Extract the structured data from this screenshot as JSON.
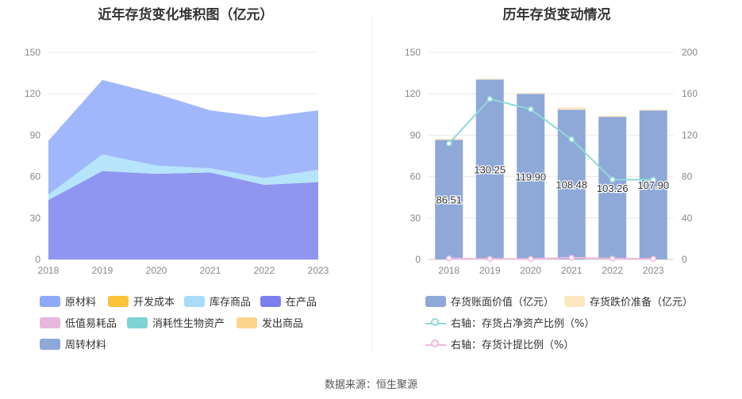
{
  "left": {
    "title": "近年存货变化堆积图（亿元）",
    "legend": [
      {
        "label": "原材料",
        "color": "#8fa8f8"
      },
      {
        "label": "开发成本",
        "color": "#fbc33a"
      },
      {
        "label": "库存商品",
        "color": "#a8dcf8"
      },
      {
        "label": "在产品",
        "color": "#7b7ff0"
      },
      {
        "label": "低值易耗品",
        "color": "#e6b6dc"
      },
      {
        "label": "消耗性生物资产",
        "color": "#7fd3d3"
      },
      {
        "label": "发出商品",
        "color": "#fcd48e"
      },
      {
        "label": "周转材料",
        "color": "#8ea8d8"
      }
    ]
  },
  "right": {
    "title": "历年存货变动情况",
    "legend": [
      {
        "label": "存货账面价值（亿元）",
        "color": "#8ea8d8",
        "kind": "bar"
      },
      {
        "label": "存货跌价准备（亿元）",
        "color": "#fce6c0",
        "kind": "bar"
      },
      {
        "label": "右轴：存货占净资产比例（%）",
        "color": "#8fd9d9",
        "kind": "line"
      },
      {
        "label": "右轴：存货计提比例（%）",
        "color": "#f0b8e0",
        "kind": "line"
      }
    ]
  },
  "source": "数据来源：恒生聚源",
  "chart_data": [
    {
      "type": "area",
      "title": "近年存货变化堆积图（亿元）",
      "stacked": true,
      "x": [
        "2018",
        "2019",
        "2020",
        "2021",
        "2022",
        "2023"
      ],
      "ylim": [
        0,
        150
      ],
      "yticks": [
        0,
        30,
        60,
        90,
        120,
        150
      ],
      "grid": true,
      "legend_position": "bottom",
      "series": [
        {
          "name": "在产品",
          "color": "#8f96f2",
          "values": [
            43,
            64,
            62,
            63,
            54,
            56
          ]
        },
        {
          "name": "库存商品",
          "color": "#b6e4fb",
          "values": [
            4,
            12,
            6,
            3,
            5,
            9
          ]
        },
        {
          "name": "原材料",
          "color": "#a1b7fb",
          "values": [
            39,
            54,
            52,
            42,
            44,
            43
          ]
        }
      ]
    },
    {
      "type": "bar",
      "title": "历年存货变动情况",
      "categories": [
        "2018",
        "2019",
        "2020",
        "2021",
        "2022",
        "2023"
      ],
      "ylim": [
        0,
        150
      ],
      "yticks": [
        0,
        30,
        60,
        90,
        120,
        150
      ],
      "y2lim": [
        0,
        200
      ],
      "y2ticks": [
        0,
        40,
        80,
        120,
        160,
        200
      ],
      "grid": true,
      "legend_position": "bottom",
      "series": [
        {
          "name": "存货账面价值（亿元）",
          "kind": "bar",
          "color": "#8ea8d8",
          "values": [
            86.51,
            130.25,
            119.9,
            108.48,
            103.26,
            107.9
          ],
          "labels": [
            "86.51",
            "130.25",
            "119.90",
            "108.48",
            "103.26",
            "107.90"
          ]
        },
        {
          "name": "存货跌价准备（亿元）",
          "kind": "bar",
          "color": "#fce6c0",
          "values": [
            0.9,
            0.6,
            0.6,
            1.7,
            0.8,
            0.6
          ]
        },
        {
          "name": "右轴：存货占净资产比例（%）",
          "kind": "line",
          "axis": "right",
          "color": "#8fd9d9",
          "values": [
            112,
            155,
            145,
            116,
            77,
            77
          ]
        },
        {
          "name": "右轴：存货计提比例（%）",
          "kind": "line",
          "axis": "right",
          "color": "#f0b8e0",
          "values": [
            1.0,
            0.5,
            0.5,
            1.6,
            0.8,
            0.6
          ]
        }
      ]
    }
  ]
}
